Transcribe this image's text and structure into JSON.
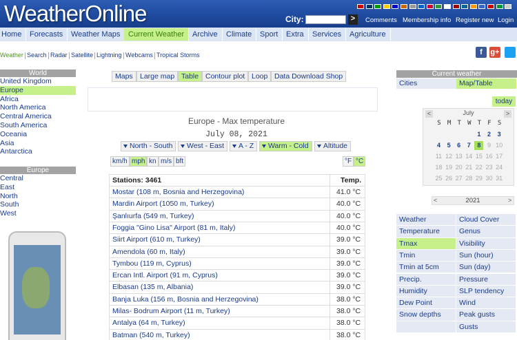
{
  "header": {
    "logo": "WeatherOnline",
    "city_label": "City:",
    "go": ">",
    "links": [
      "Comments",
      "Membership info",
      "Register new",
      "Login"
    ]
  },
  "nav": [
    "Home",
    "Forecasts",
    "Weather Maps",
    "Current Weather",
    "Archive",
    "Climate",
    "Sport",
    "Extra",
    "Services",
    "Agriculture"
  ],
  "nav_active": 3,
  "subnav": [
    "Weather",
    "Search",
    "Radar",
    "Satellite",
    "Lightning",
    "Webcams",
    "Tropical Storms"
  ],
  "social": [
    "f",
    "g+"
  ],
  "left": {
    "world_title": "World",
    "world": [
      "United Kingdom",
      "Europe",
      "Africa",
      "North America",
      "Central America",
      "South America",
      "Oceania",
      "Asia",
      "Antarctica"
    ],
    "world_active": 1,
    "europe_title": "Europe",
    "europe": [
      "Central",
      "East",
      "North",
      "South",
      "West"
    ]
  },
  "tabs": [
    "Maps",
    "Large map",
    "Table",
    "Contour plot",
    "Loop",
    "Data Download Shop"
  ],
  "tab_active": 2,
  "title": "Europe - Max temperature",
  "date": "July 08, 2021",
  "sort": [
    "North - South",
    "West - East",
    "A - Z",
    "Warm - Cold",
    "Altitude"
  ],
  "sort_active": 3,
  "units": [
    "km/h",
    "mph",
    "kn",
    "m/s",
    "bft"
  ],
  "unit_active": 1,
  "temp_units": [
    "°F",
    "°C"
  ],
  "temp_active": 1,
  "table": {
    "header": [
      "Stations: 3461",
      "Temp."
    ],
    "rows": [
      [
        "Mostar (108 m, Bosnia and Herzegovina)",
        "41.0 °C"
      ],
      [
        "Mardin Airport (1050 m, Turkey)",
        "40.0 °C"
      ],
      [
        "Şanlıurfa (549 m, Turkey)",
        "40.0 °C"
      ],
      [
        "Foggia \"Gino Lisa\" Airport (81 m, Italy)",
        "40.0 °C"
      ],
      [
        "Siirt Airport (610 m, Turkey)",
        "39.0 °C"
      ],
      [
        "Amendola (60 m, Italy)",
        "39.0 °C"
      ],
      [
        "Tymbou (119 m, Cyprus)",
        "39.0 °C"
      ],
      [
        "Ercan Intl. Airport (91 m, Cyprus)",
        "39.0 °C"
      ],
      [
        "Elbasan (135 m, Albania)",
        "39.0 °C"
      ],
      [
        "Banja Luka (156 m, Bosnia and Herzegovina)",
        "38.0 °C"
      ],
      [
        "Milas- Bodrum Airport (11 m, Turkey)",
        "38.0 °C"
      ],
      [
        "Antalya (64 m, Turkey)",
        "38.0 °C"
      ],
      [
        "Batman (540 m, Turkey)",
        "38.0 °C"
      ]
    ]
  },
  "right": {
    "title": "Current weather",
    "tabs": [
      "Cities",
      "Map/Table"
    ],
    "tab_active": 1,
    "today": "today",
    "calendar": {
      "prev": "<",
      "month": "July",
      "next": ">",
      "weekdays": [
        "S",
        "M",
        "T",
        "W",
        "T",
        "F",
        "S"
      ],
      "days": [
        null,
        null,
        null,
        null,
        1,
        2,
        3,
        4,
        5,
        6,
        7,
        8,
        9,
        10,
        11,
        12,
        13,
        14,
        15,
        16,
        17,
        18,
        19,
        20,
        21,
        22,
        23,
        24,
        25,
        26,
        27,
        28,
        29,
        30,
        31
      ],
      "selected": 8,
      "year_prev": "<",
      "year": "2021",
      "year_next": ">"
    },
    "params": [
      [
        "Weather",
        "Cloud Cover"
      ],
      [
        "Temperature",
        "Genus"
      ],
      [
        "Tmax",
        "Visibility"
      ],
      [
        "Tmin",
        "Sun (hour)"
      ],
      [
        "Tmin at 5cm",
        "Sun (day)"
      ],
      [
        "Precip.",
        "Pressure"
      ],
      [
        "Humidity",
        "SLP tendency"
      ],
      [
        "Dew Point",
        "Wind"
      ],
      [
        "Snow depths",
        "Peak gusts"
      ],
      [
        null,
        "Gusts"
      ]
    ],
    "param_active": [
      2,
      0
    ]
  }
}
